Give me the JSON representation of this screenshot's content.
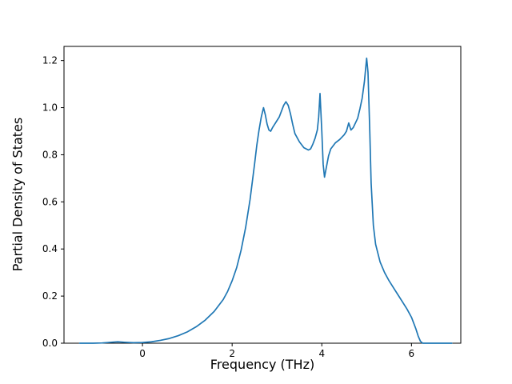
{
  "figure": {
    "background": "#ffffff"
  },
  "chart_data": {
    "type": "line",
    "title": "",
    "xlabel": "Frequency (THz)",
    "ylabel": "Partial Density of States",
    "grid": false,
    "legend": null,
    "xlim": [
      -1.75,
      7.1
    ],
    "ylim": [
      0,
      1.26
    ],
    "xticks": {
      "values": [
        0,
        2,
        4,
        6
      ],
      "labels": [
        "0",
        "2",
        "4",
        "6"
      ]
    },
    "yticks": {
      "values": [
        0.0,
        0.2,
        0.4,
        0.6,
        0.8,
        1.0,
        1.2
      ],
      "labels": [
        "0.0",
        "0.2",
        "0.4",
        "0.6",
        "0.8",
        "1.0",
        "1.2"
      ]
    },
    "series": [
      {
        "name": "partial-density-of-states",
        "color": "#1f77b4",
        "x": [
          -1.4,
          -1.1,
          -0.9,
          -0.7,
          -0.55,
          -0.4,
          -0.2,
          0.0,
          0.2,
          0.4,
          0.6,
          0.8,
          1.0,
          1.2,
          1.4,
          1.6,
          1.8,
          1.9,
          2.0,
          2.1,
          2.2,
          2.3,
          2.4,
          2.5,
          2.55,
          2.6,
          2.65,
          2.7,
          2.74,
          2.78,
          2.82,
          2.86,
          2.9,
          2.95,
          3.0,
          3.05,
          3.1,
          3.15,
          3.2,
          3.25,
          3.3,
          3.35,
          3.4,
          3.5,
          3.6,
          3.7,
          3.75,
          3.8,
          3.85,
          3.9,
          3.93,
          3.96,
          4.0,
          4.03,
          4.06,
          4.1,
          4.15,
          4.2,
          4.3,
          4.4,
          4.5,
          4.55,
          4.6,
          4.65,
          4.7,
          4.8,
          4.85,
          4.9,
          4.95,
          5.0,
          5.03,
          5.07,
          5.1,
          5.15,
          5.2,
          5.3,
          5.4,
          5.5,
          5.6,
          5.7,
          5.8,
          5.9,
          6.0,
          6.05,
          6.1,
          6.15,
          6.2,
          6.25,
          6.5,
          6.9
        ],
        "y": [
          0.0,
          0.0,
          0.001,
          0.004,
          0.006,
          0.004,
          0.002,
          0.003,
          0.006,
          0.012,
          0.02,
          0.032,
          0.048,
          0.07,
          0.098,
          0.135,
          0.185,
          0.22,
          0.265,
          0.32,
          0.395,
          0.49,
          0.61,
          0.76,
          0.84,
          0.905,
          0.96,
          1.0,
          0.97,
          0.93,
          0.905,
          0.9,
          0.915,
          0.93,
          0.945,
          0.96,
          0.985,
          1.01,
          1.025,
          1.01,
          0.975,
          0.93,
          0.89,
          0.855,
          0.83,
          0.82,
          0.825,
          0.845,
          0.87,
          0.905,
          0.96,
          1.06,
          0.9,
          0.76,
          0.705,
          0.745,
          0.795,
          0.825,
          0.85,
          0.865,
          0.885,
          0.9,
          0.935,
          0.905,
          0.915,
          0.955,
          0.995,
          1.04,
          1.11,
          1.21,
          1.15,
          0.9,
          0.68,
          0.5,
          0.42,
          0.345,
          0.3,
          0.265,
          0.235,
          0.205,
          0.175,
          0.145,
          0.11,
          0.085,
          0.06,
          0.03,
          0.008,
          0.0,
          0.0,
          0.0
        ]
      }
    ]
  }
}
